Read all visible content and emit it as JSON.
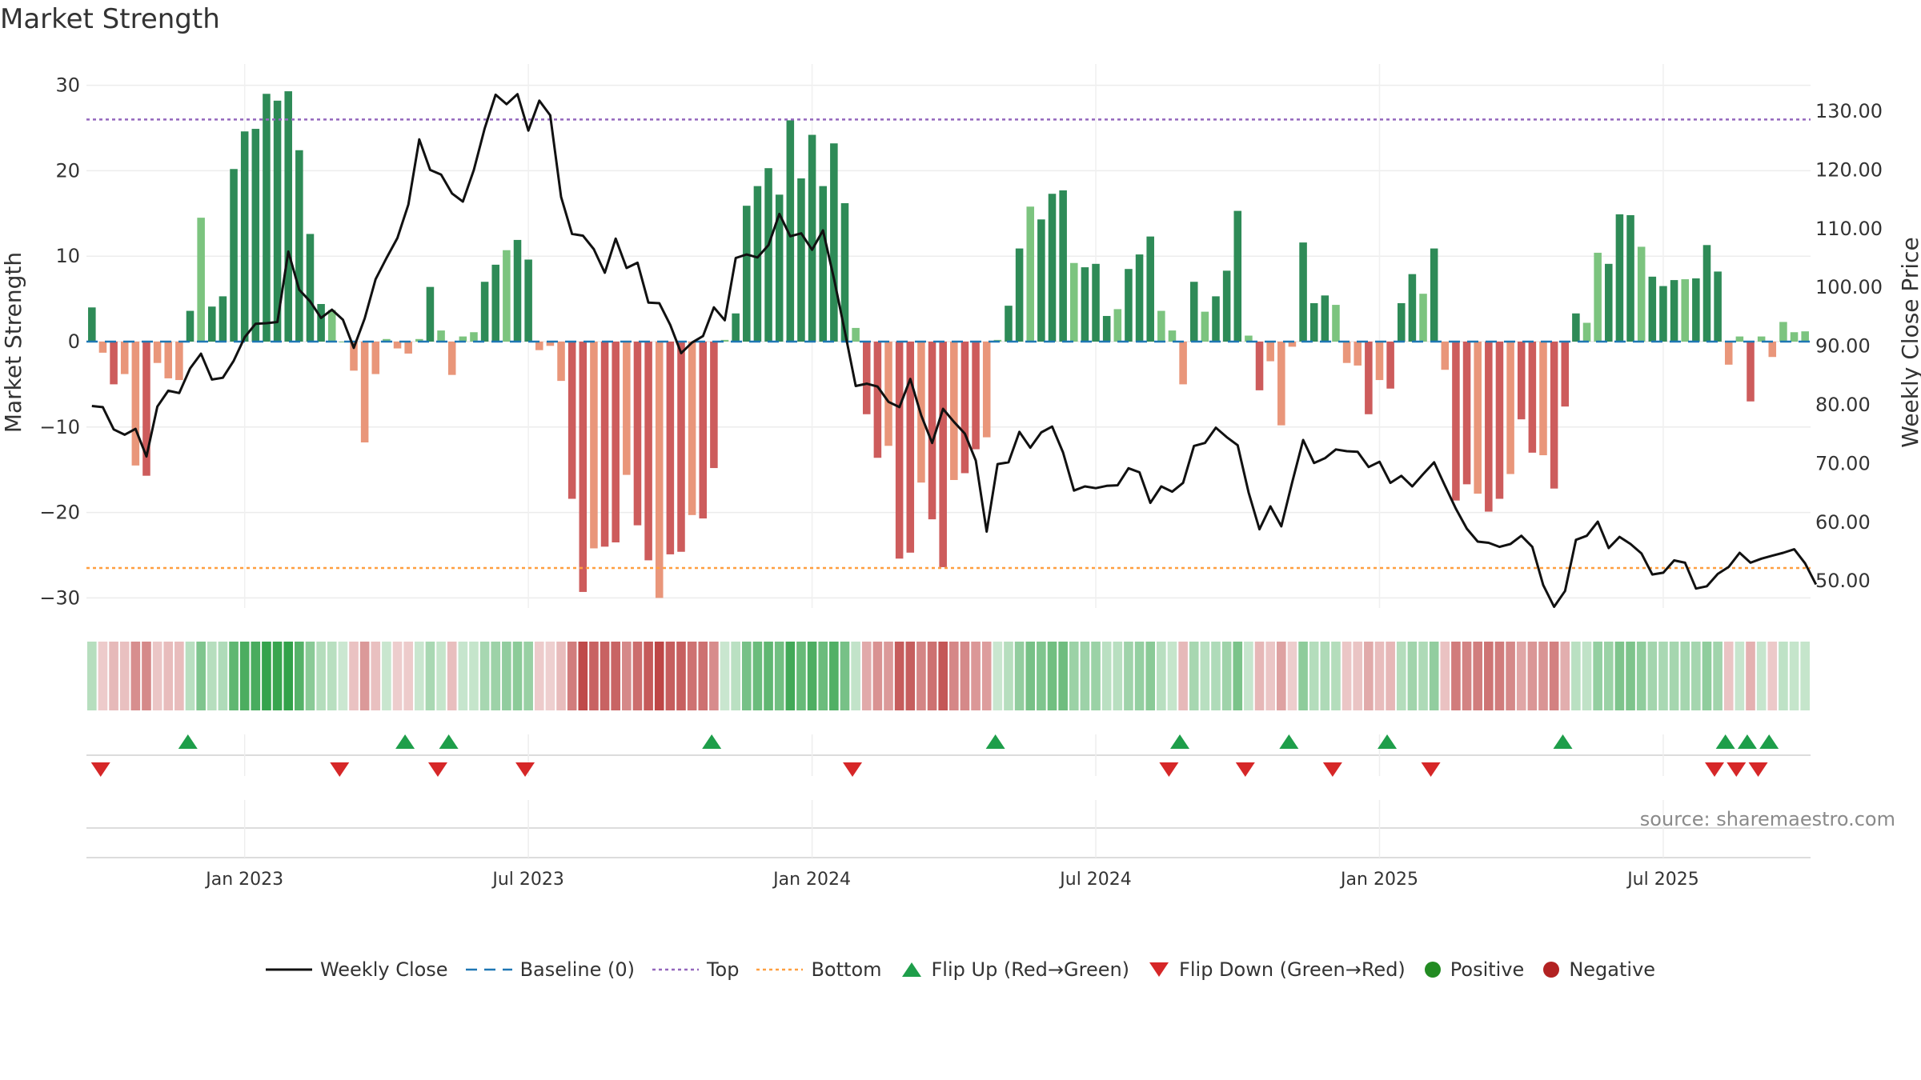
{
  "title": "Market Strength",
  "source": "source: sharemaestro.com",
  "chart_data": {
    "type": "bar+line",
    "title": "Market Strength",
    "y_left_label": "Market Strength",
    "y_right_label": "Weekly Close Price",
    "y_left_range": [
      -33,
      32
    ],
    "y_left_ticks": [
      30,
      20,
      10,
      0,
      -10,
      -20,
      -30
    ],
    "y_left_tick_labels": [
      "30",
      "20",
      "10",
      "0",
      "−10",
      "−20",
      "−30"
    ],
    "y_right_range": [
      43.5,
      138
    ],
    "y_right_ticks": [
      "130.00",
      "120.00",
      "110.00",
      "100.00",
      "90.00",
      "80.00",
      "70.00",
      "60.00",
      "50.00"
    ],
    "x_tick_labels": [
      "Jan 2023",
      "Jul 2023",
      "Jan 2024",
      "Jul 2024",
      "Jan 2025",
      "Jul 2025"
    ],
    "x_tick_weeks": [
      14.5,
      40.5,
      66.5,
      92.5,
      118.5,
      144.5
    ],
    "top_line": 26,
    "bottom_line": -26.5,
    "colors": {
      "pos_strong": "#2e8b57",
      "pos_weak": "#7cc47f",
      "neg_strong": "#cd5c5c",
      "neg_weak": "#e9967a",
      "close": "#111111",
      "baseline": "#1f77b4",
      "top": "#9467bd",
      "bottom": "#ff9f40",
      "flip_up": "#1e9e4a",
      "flip_down": "#d62728",
      "positive": "#228b22",
      "negative": "#b22222"
    },
    "strength": [
      4,
      -1.3,
      -5,
      -3.8,
      -14.5,
      -15.7,
      -2.5,
      -4.3,
      -4.5,
      3.6,
      14.5,
      4.1,
      5.3,
      20.2,
      24.6,
      24.9,
      29,
      28.2,
      29.3,
      22.4,
      12.6,
      4.4,
      3.7,
      0,
      -3.4,
      -11.8,
      -3.8,
      0.3,
      -0.8,
      -1.4,
      0.3,
      6.4,
      1.3,
      -3.9,
      0.6,
      1.1,
      7,
      9,
      10.7,
      11.9,
      9.6,
      -1,
      -0.5,
      -4.6,
      -18.4,
      -29.3,
      -24.2,
      -24,
      -23.5,
      -15.6,
      -21.5,
      -25.6,
      -30,
      -24.9,
      -24.6,
      -20.3,
      -20.7,
      -14.8,
      0.2,
      3.3,
      15.9,
      18.2,
      20.3,
      17.2,
      25.9,
      19.1,
      24.2,
      18.2,
      23.2,
      16.2,
      1.6,
      -8.5,
      -13.6,
      -12.2,
      -25.4,
      -24.7,
      -16.5,
      -20.8,
      -26.4,
      -16.2,
      -15.4,
      -12.6,
      -11.2,
      0.2,
      4.2,
      10.9,
      15.8,
      14.3,
      17.3,
      17.7,
      9.2,
      8.7,
      9.1,
      3,
      3.8,
      8.5,
      10.2,
      12.3,
      3.6,
      1.3,
      -5,
      7,
      3.5,
      5.3,
      8.3,
      15.3,
      0.7,
      -5.7,
      -2.3,
      -9.8,
      -0.6,
      11.6,
      4.5,
      5.4,
      4.3,
      -2.5,
      -2.8,
      -8.5,
      -4.5,
      -5.5,
      4.5,
      7.9,
      5.6,
      10.9,
      -3.3,
      -18.6,
      -16.7,
      -17.8,
      -19.9,
      -18.4,
      -15.5,
      -9.1,
      -13,
      -13.3,
      -17.2,
      -7.6,
      3.3,
      2.2,
      10.4,
      9.1,
      14.9,
      14.8,
      11.1,
      7.6,
      6.5,
      7.2,
      7.3,
      7.4,
      11.3,
      8.2,
      -2.7,
      0.6,
      -7,
      0.6,
      -1.8,
      2.3,
      1.1,
      1.2
    ],
    "close": [
      79.8,
      79.6,
      75.8,
      74.9,
      75.9,
      71.2,
      79.7,
      82.4,
      82,
      86.2,
      88.7,
      84.3,
      84.6,
      87.5,
      91.5,
      93.8,
      93.9,
      94.1,
      106.1,
      99.6,
      97.6,
      94.8,
      96.2,
      94.5,
      89.7,
      94.7,
      101.4,
      105,
      108.4,
      114.1,
      125.2,
      120,
      119.2,
      116,
      114.6,
      120,
      127.1,
      132.8,
      131.2,
      132.9,
      126.7,
      131.8,
      129.3,
      115.4,
      109.1,
      108.8,
      106.5,
      102.5,
      108.3,
      103.3,
      104.2,
      97.4,
      97.3,
      93.6,
      88.8,
      90.6,
      91.7,
      96.6,
      94.4,
      105,
      105.6,
      105.1,
      107.2,
      112.5,
      108.7,
      109.2,
      106.4,
      109.7,
      101.5,
      92.5,
      83.2,
      83.6,
      83.1,
      80.5,
      79.6,
      84.4,
      78.2,
      73.5,
      79.3,
      77.1,
      75.1,
      70.5,
      58.4,
      69.9,
      70.2,
      75.4,
      72.7,
      75.3,
      76.3,
      71.9,
      65.4,
      66.1,
      65.8,
      66.2,
      66.3,
      69.2,
      68.5,
      63.3,
      66.1,
      65.2,
      66.7,
      73,
      73.5,
      76.1,
      74.5,
      73.1,
      65.1,
      58.8,
      62.7,
      59.3,
      66.8,
      74,
      70.1,
      70.9,
      72.4,
      72.1,
      72,
      69.4,
      70.3,
      66.7,
      67.9,
      66.1,
      68.2,
      70.2,
      66.2,
      62.3,
      58.9,
      56.7,
      56.5,
      55.8,
      56.3,
      57.7,
      55.8,
      49.3,
      45.6,
      48.3,
      57,
      57.7,
      60.1,
      55.6,
      57.5,
      56.3,
      54.7,
      51.1,
      51.4,
      53.5,
      53.1,
      48.7,
      49.1,
      51.2,
      52.4,
      54.8,
      53.1,
      53.8,
      54.3,
      54.8,
      55.4,
      53,
      49.4
    ],
    "flip_up_weeks": [
      9.3,
      29.2,
      33.2,
      57.3,
      83.3,
      100.2,
      110.2,
      119.2,
      135.3,
      150.2,
      152.2,
      154.2
    ],
    "flip_down_weeks": [
      1.3,
      23.2,
      32.2,
      40.2,
      70.2,
      99.2,
      106.2,
      114.2,
      123.2,
      149.2,
      151.2,
      153.2
    ]
  },
  "legend": {
    "weekly_close": "Weekly Close",
    "baseline": "Baseline (0)",
    "top": "Top",
    "bottom": "Bottom",
    "flip_up": "Flip Up (Red→Green)",
    "flip_down": "Flip Down (Green→Red)",
    "positive": "Positive",
    "negative": "Negative"
  }
}
